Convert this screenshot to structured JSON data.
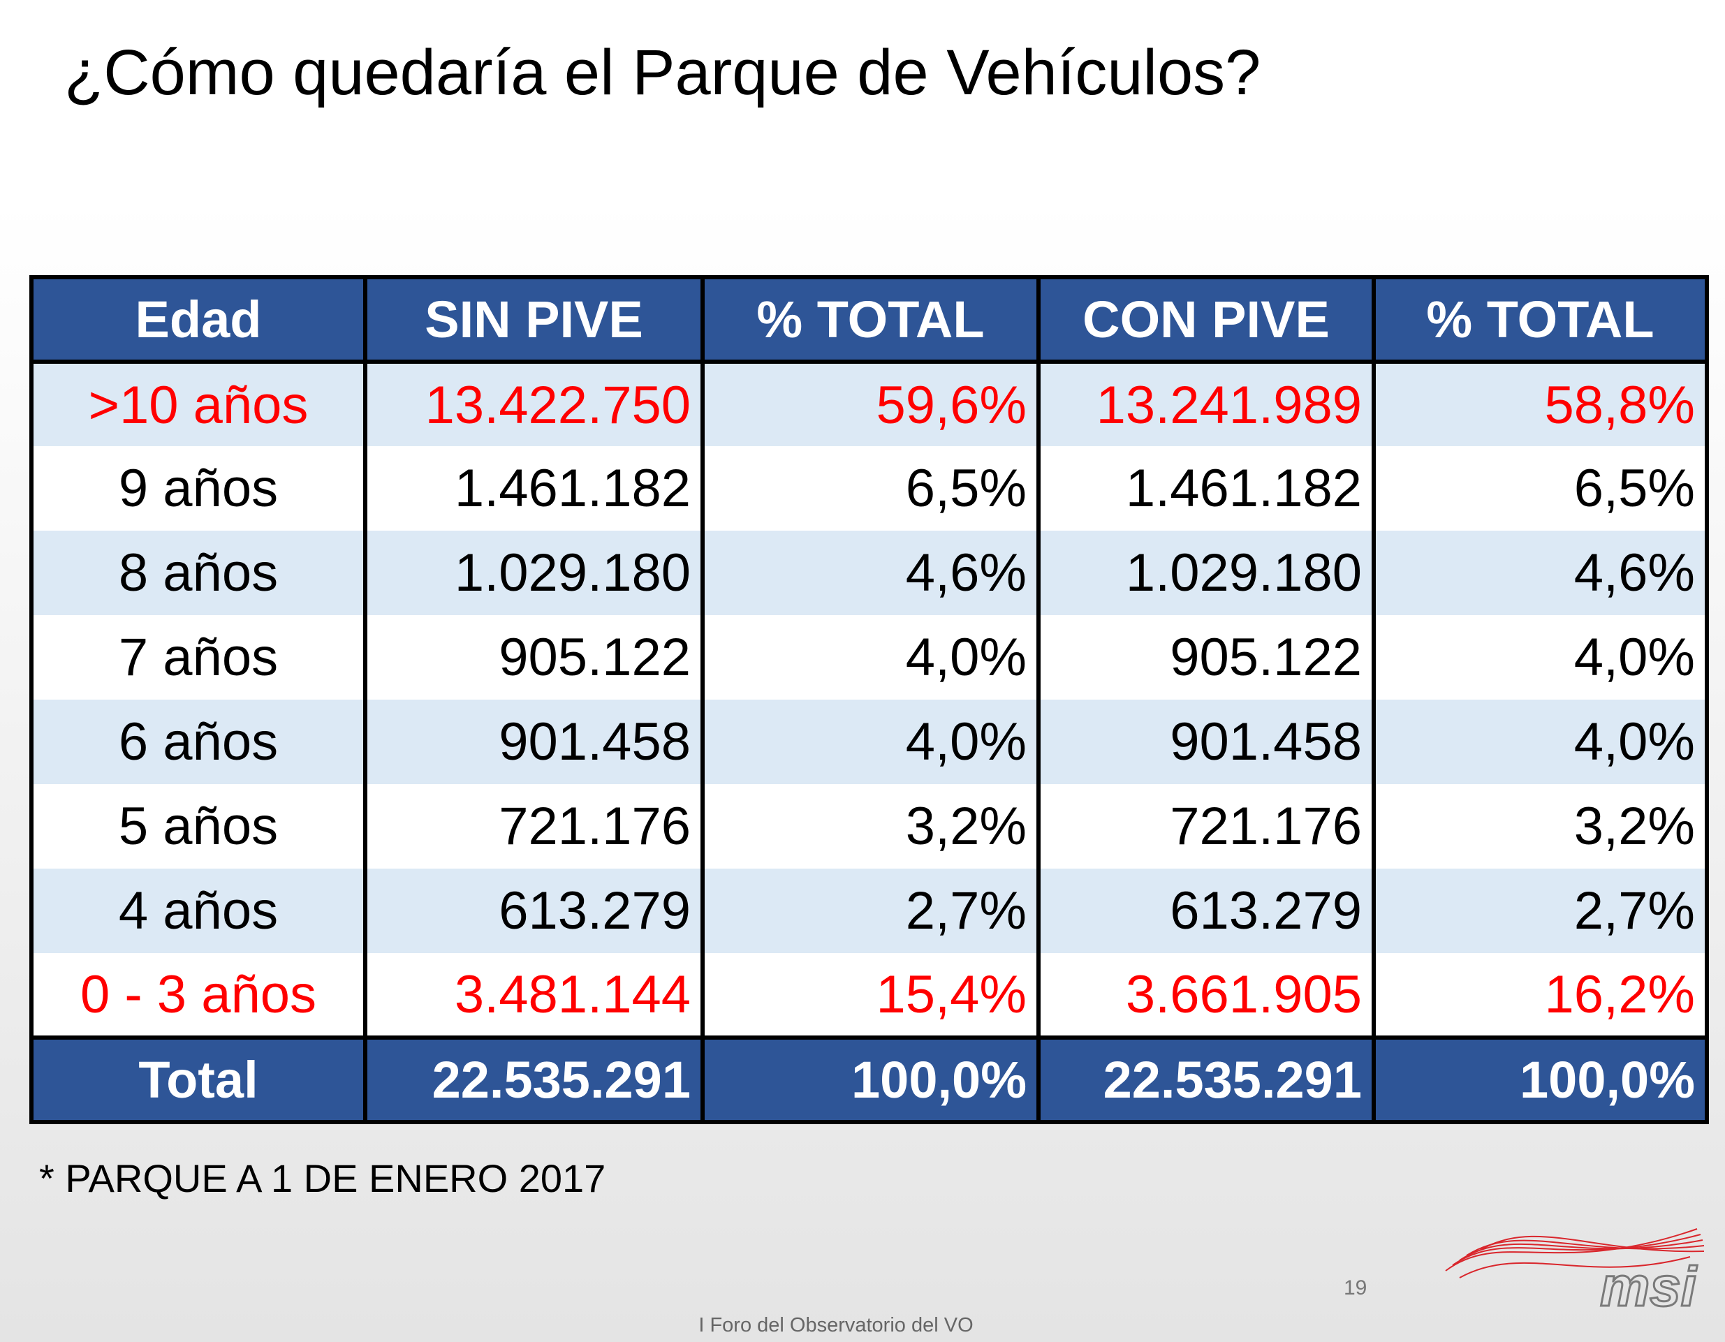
{
  "title": "¿Cómo quedaría el Parque de Vehículos?",
  "table": {
    "header": [
      "Edad",
      "SIN PIVE",
      "% TOTAL",
      "CON PIVE",
      "% TOTAL"
    ],
    "rows": [
      {
        "cells": [
          ">10 años",
          "13.422.750",
          "59,6%",
          "13.241.989",
          "58,8%"
        ],
        "color": "#ff0000"
      },
      {
        "cells": [
          "9 años",
          "1.461.182",
          "6,5%",
          "1.461.182",
          "6,5%"
        ],
        "color": "#000000"
      },
      {
        "cells": [
          "8 años",
          "1.029.180",
          "4,6%",
          "1.029.180",
          "4,6%"
        ],
        "color": "#000000"
      },
      {
        "cells": [
          "7 años",
          "905.122",
          "4,0%",
          "905.122",
          "4,0%"
        ],
        "color": "#000000"
      },
      {
        "cells": [
          "6 años",
          "901.458",
          "4,0%",
          "901.458",
          "4,0%"
        ],
        "color": "#000000"
      },
      {
        "cells": [
          "5 años",
          "721.176",
          "3,2%",
          "721.176",
          "3,2%"
        ],
        "color": "#000000"
      },
      {
        "cells": [
          "4 años",
          "613.279",
          "2,7%",
          "613.279",
          "2,7%"
        ],
        "color": "#000000"
      },
      {
        "cells": [
          "0 - 3 años",
          "3.481.144",
          "15,4%",
          "3.661.905",
          "16,2%"
        ],
        "color": "#ff0000"
      }
    ],
    "total": [
      "Total",
      "22.535.291",
      "100,0%",
      "22.535.291",
      "100,0%"
    ]
  },
  "footnote": "* PARQUE A 1 DE ENERO 2017",
  "page_number": "19",
  "footer": "I Foro del Observatorio del VO",
  "logo": "msi"
}
